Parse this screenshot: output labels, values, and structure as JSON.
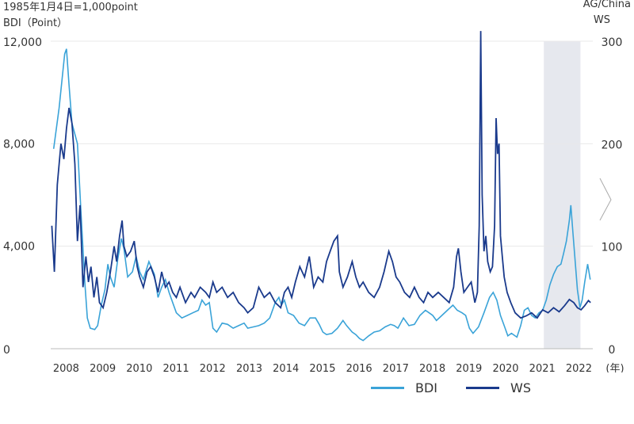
{
  "chart_data": {
    "type": "line",
    "note": "1985年1月4日=1,000point",
    "ylabel_left": "BDI（Point）",
    "ylabel_right_line1": "AG/China",
    "ylabel_right_line2": "WS",
    "y_left": {
      "min": 0,
      "max": 12000,
      "ticks": [
        "12,000",
        "8,000",
        "4,000",
        "0"
      ]
    },
    "y_right": {
      "min": 0,
      "max": 300,
      "ticks": [
        "300",
        "200",
        "100",
        "0"
      ]
    },
    "x_ticks": [
      "2008",
      "2009",
      "2010",
      "2011",
      "2012",
      "2013",
      "2014",
      "2015",
      "2016",
      "2017",
      "2018",
      "2019",
      "2020",
      "2021",
      "2022"
    ],
    "x_unit": "(年)",
    "shaded_period": [
      "2021-02",
      "2022-02"
    ],
    "colors": {
      "BDI": "#3aa3d8",
      "WS": "#1a3a8c",
      "shade": "#e6e8ee"
    },
    "series": [
      {
        "name": "BDI",
        "axis": "left",
        "points": [
          [
            2007.7,
            7800
          ],
          [
            2007.85,
            9400
          ],
          [
            2008.0,
            11500
          ],
          [
            2008.05,
            11700
          ],
          [
            2008.12,
            10300
          ],
          [
            2008.2,
            8800
          ],
          [
            2008.35,
            8000
          ],
          [
            2008.45,
            5200
          ],
          [
            2008.55,
            2600
          ],
          [
            2008.62,
            1200
          ],
          [
            2008.7,
            800
          ],
          [
            2008.82,
            750
          ],
          [
            2008.9,
            900
          ],
          [
            2009.0,
            1700
          ],
          [
            2009.1,
            2300
          ],
          [
            2009.18,
            3300
          ],
          [
            2009.25,
            2800
          ],
          [
            2009.35,
            2400
          ],
          [
            2009.45,
            3500
          ],
          [
            2009.55,
            4300
          ],
          [
            2009.62,
            3900
          ],
          [
            2009.72,
            2800
          ],
          [
            2009.85,
            3000
          ],
          [
            2009.95,
            3600
          ],
          [
            2010.05,
            3000
          ],
          [
            2010.15,
            2700
          ],
          [
            2010.3,
            3400
          ],
          [
            2010.45,
            2900
          ],
          [
            2010.55,
            2000
          ],
          [
            2010.65,
            2400
          ],
          [
            2010.75,
            2700
          ],
          [
            2010.85,
            2200
          ],
          [
            2010.95,
            1800
          ],
          [
            2011.05,
            1400
          ],
          [
            2011.2,
            1200
          ],
          [
            2011.35,
            1300
          ],
          [
            2011.5,
            1400
          ],
          [
            2011.65,
            1500
          ],
          [
            2011.75,
            1900
          ],
          [
            2011.85,
            1700
          ],
          [
            2011.95,
            1800
          ],
          [
            2012.05,
            800
          ],
          [
            2012.15,
            650
          ],
          [
            2012.3,
            1000
          ],
          [
            2012.45,
            950
          ],
          [
            2012.6,
            800
          ],
          [
            2012.75,
            900
          ],
          [
            2012.9,
            1000
          ],
          [
            2013.0,
            800
          ],
          [
            2013.15,
            850
          ],
          [
            2013.3,
            900
          ],
          [
            2013.45,
            1000
          ],
          [
            2013.6,
            1200
          ],
          [
            2013.75,
            1800
          ],
          [
            2013.85,
            2000
          ],
          [
            2013.92,
            1700
          ],
          [
            2014.0,
            1900
          ],
          [
            2014.1,
            1400
          ],
          [
            2014.25,
            1300
          ],
          [
            2014.4,
            1000
          ],
          [
            2014.55,
            900
          ],
          [
            2014.7,
            1200
          ],
          [
            2014.85,
            1200
          ],
          [
            2014.95,
            950
          ],
          [
            2015.05,
            650
          ],
          [
            2015.15,
            550
          ],
          [
            2015.3,
            600
          ],
          [
            2015.45,
            800
          ],
          [
            2015.6,
            1100
          ],
          [
            2015.7,
            900
          ],
          [
            2015.85,
            650
          ],
          [
            2015.95,
            550
          ],
          [
            2016.05,
            400
          ],
          [
            2016.15,
            320
          ],
          [
            2016.3,
            500
          ],
          [
            2016.45,
            650
          ],
          [
            2016.6,
            700
          ],
          [
            2016.75,
            850
          ],
          [
            2016.9,
            950
          ],
          [
            2017.0,
            900
          ],
          [
            2017.1,
            800
          ],
          [
            2017.25,
            1200
          ],
          [
            2017.4,
            900
          ],
          [
            2017.55,
            950
          ],
          [
            2017.7,
            1300
          ],
          [
            2017.85,
            1500
          ],
          [
            2017.95,
            1400
          ],
          [
            2018.05,
            1300
          ],
          [
            2018.15,
            1100
          ],
          [
            2018.3,
            1300
          ],
          [
            2018.45,
            1500
          ],
          [
            2018.6,
            1700
          ],
          [
            2018.72,
            1500
          ],
          [
            2018.85,
            1400
          ],
          [
            2018.95,
            1300
          ],
          [
            2019.05,
            800
          ],
          [
            2019.15,
            600
          ],
          [
            2019.3,
            850
          ],
          [
            2019.45,
            1400
          ],
          [
            2019.6,
            2000
          ],
          [
            2019.7,
            2200
          ],
          [
            2019.8,
            1900
          ],
          [
            2019.9,
            1300
          ],
          [
            2020.0,
            900
          ],
          [
            2020.1,
            500
          ],
          [
            2020.2,
            600
          ],
          [
            2020.35,
            450
          ],
          [
            2020.45,
            900
          ],
          [
            2020.55,
            1500
          ],
          [
            2020.65,
            1600
          ],
          [
            2020.75,
            1300
          ],
          [
            2020.85,
            1200
          ],
          [
            2020.95,
            1400
          ],
          [
            2021.05,
            1500
          ],
          [
            2021.15,
            1900
          ],
          [
            2021.25,
            2500
          ],
          [
            2021.35,
            2900
          ],
          [
            2021.45,
            3200
          ],
          [
            2021.55,
            3300
          ],
          [
            2021.62,
            3700
          ],
          [
            2021.7,
            4200
          ],
          [
            2021.78,
            5000
          ],
          [
            2021.82,
            5600
          ],
          [
            2021.88,
            4500
          ],
          [
            2021.95,
            3200
          ],
          [
            2022.0,
            2300
          ],
          [
            2022.07,
            1600
          ],
          [
            2022.13,
            1900
          ],
          [
            2022.2,
            2600
          ],
          [
            2022.28,
            3300
          ],
          [
            2022.35,
            2700
          ]
        ]
      },
      {
        "name": "WS",
        "axis": "right",
        "points": [
          [
            2007.65,
            120
          ],
          [
            2007.72,
            75
          ],
          [
            2007.8,
            160
          ],
          [
            2007.9,
            200
          ],
          [
            2007.98,
            185
          ],
          [
            2008.05,
            215
          ],
          [
            2008.12,
            235
          ],
          [
            2008.2,
            220
          ],
          [
            2008.28,
            180
          ],
          [
            2008.35,
            105
          ],
          [
            2008.42,
            140
          ],
          [
            2008.5,
            60
          ],
          [
            2008.58,
            90
          ],
          [
            2008.65,
            65
          ],
          [
            2008.72,
            80
          ],
          [
            2008.8,
            50
          ],
          [
            2008.88,
            70
          ],
          [
            2008.95,
            45
          ],
          [
            2009.05,
            40
          ],
          [
            2009.15,
            55
          ],
          [
            2009.25,
            75
          ],
          [
            2009.35,
            100
          ],
          [
            2009.42,
            85
          ],
          [
            2009.5,
            110
          ],
          [
            2009.57,
            125
          ],
          [
            2009.62,
            100
          ],
          [
            2009.7,
            90
          ],
          [
            2009.8,
            95
          ],
          [
            2009.9,
            105
          ],
          [
            2009.98,
            80
          ],
          [
            2010.05,
            70
          ],
          [
            2010.15,
            60
          ],
          [
            2010.25,
            75
          ],
          [
            2010.35,
            80
          ],
          [
            2010.45,
            70
          ],
          [
            2010.55,
            55
          ],
          [
            2010.65,
            75
          ],
          [
            2010.75,
            60
          ],
          [
            2010.85,
            65
          ],
          [
            2010.95,
            55
          ],
          [
            2011.05,
            50
          ],
          [
            2011.15,
            60
          ],
          [
            2011.3,
            45
          ],
          [
            2011.45,
            55
          ],
          [
            2011.55,
            50
          ],
          [
            2011.7,
            60
          ],
          [
            2011.85,
            55
          ],
          [
            2011.95,
            50
          ],
          [
            2012.05,
            65
          ],
          [
            2012.15,
            55
          ],
          [
            2012.3,
            60
          ],
          [
            2012.45,
            50
          ],
          [
            2012.6,
            55
          ],
          [
            2012.75,
            45
          ],
          [
            2012.9,
            40
          ],
          [
            2013.0,
            35
          ],
          [
            2013.15,
            40
          ],
          [
            2013.3,
            60
          ],
          [
            2013.45,
            50
          ],
          [
            2013.6,
            55
          ],
          [
            2013.75,
            45
          ],
          [
            2013.9,
            40
          ],
          [
            2014.0,
            55
          ],
          [
            2014.1,
            60
          ],
          [
            2014.2,
            50
          ],
          [
            2014.3,
            65
          ],
          [
            2014.42,
            80
          ],
          [
            2014.55,
            70
          ],
          [
            2014.68,
            90
          ],
          [
            2014.8,
            60
          ],
          [
            2014.92,
            70
          ],
          [
            2015.05,
            65
          ],
          [
            2015.15,
            85
          ],
          [
            2015.25,
            95
          ],
          [
            2015.35,
            105
          ],
          [
            2015.45,
            110
          ],
          [
            2015.5,
            75
          ],
          [
            2015.6,
            60
          ],
          [
            2015.72,
            70
          ],
          [
            2015.85,
            85
          ],
          [
            2015.95,
            70
          ],
          [
            2016.05,
            60
          ],
          [
            2016.15,
            65
          ],
          [
            2016.3,
            55
          ],
          [
            2016.45,
            50
          ],
          [
            2016.6,
            60
          ],
          [
            2016.72,
            75
          ],
          [
            2016.85,
            95
          ],
          [
            2016.95,
            85
          ],
          [
            2017.05,
            70
          ],
          [
            2017.15,
            65
          ],
          [
            2017.28,
            55
          ],
          [
            2017.42,
            50
          ],
          [
            2017.55,
            60
          ],
          [
            2017.68,
            50
          ],
          [
            2017.8,
            45
          ],
          [
            2017.92,
            55
          ],
          [
            2018.05,
            50
          ],
          [
            2018.2,
            55
          ],
          [
            2018.35,
            50
          ],
          [
            2018.5,
            45
          ],
          [
            2018.62,
            60
          ],
          [
            2018.7,
            90
          ],
          [
            2018.75,
            98
          ],
          [
            2018.82,
            75
          ],
          [
            2018.9,
            55
          ],
          [
            2019.0,
            60
          ],
          [
            2019.1,
            65
          ],
          [
            2019.2,
            45
          ],
          [
            2019.27,
            55
          ],
          [
            2019.32,
            120
          ],
          [
            2019.36,
            310
          ],
          [
            2019.4,
            150
          ],
          [
            2019.45,
            95
          ],
          [
            2019.5,
            110
          ],
          [
            2019.55,
            85
          ],
          [
            2019.62,
            75
          ],
          [
            2019.68,
            80
          ],
          [
            2019.74,
            120
          ],
          [
            2019.78,
            225
          ],
          [
            2019.82,
            190
          ],
          [
            2019.86,
            200
          ],
          [
            2019.9,
            110
          ],
          [
            2019.95,
            90
          ],
          [
            2020.0,
            70
          ],
          [
            2020.08,
            55
          ],
          [
            2020.18,
            45
          ],
          [
            2020.3,
            35
          ],
          [
            2020.45,
            30
          ],
          [
            2020.6,
            32
          ],
          [
            2020.75,
            35
          ],
          [
            2020.9,
            30
          ],
          [
            2021.05,
            38
          ],
          [
            2021.2,
            35
          ],
          [
            2021.35,
            40
          ],
          [
            2021.5,
            36
          ],
          [
            2021.65,
            42
          ],
          [
            2021.78,
            48
          ],
          [
            2021.9,
            45
          ],
          [
            2022.0,
            40
          ],
          [
            2022.1,
            38
          ],
          [
            2022.2,
            42
          ],
          [
            2022.3,
            47
          ],
          [
            2022.36,
            45
          ]
        ]
      }
    ]
  }
}
